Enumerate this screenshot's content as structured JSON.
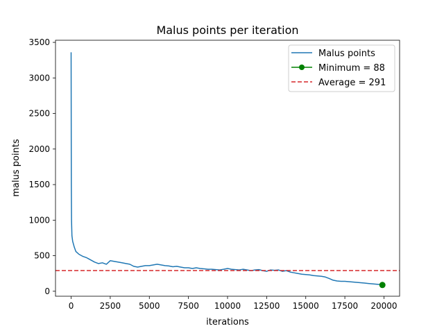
{
  "chart_data": {
    "type": "line",
    "title": "Malus points per iteration",
    "xlabel": "iterations",
    "ylabel": "malus points",
    "xlim": [
      -1000,
      21000
    ],
    "ylim": [
      -70,
      3530
    ],
    "xticks": [
      0,
      2500,
      5000,
      7500,
      10000,
      12500,
      15000,
      17500,
      20000
    ],
    "xtick_labels": [
      "0",
      "2500",
      "5000",
      "7500",
      "10000",
      "12500",
      "15000",
      "17500",
      "20000"
    ],
    "yticks": [
      0,
      500,
      1000,
      1500,
      2000,
      2500,
      3000,
      3500
    ],
    "ytick_labels": [
      "0",
      "500",
      "1000",
      "1500",
      "2000",
      "2500",
      "3000",
      "3500"
    ],
    "grid": false,
    "legend_position": "top-right",
    "series": [
      {
        "name": "Malus points",
        "kind": "line",
        "color": "#1f77b4",
        "x": [
          0,
          10,
          25,
          50,
          100,
          200,
          300,
          500,
          750,
          1000,
          1250,
          1500,
          1750,
          2000,
          2250,
          2500,
          2750,
          3000,
          3250,
          3500,
          3750,
          4000,
          4250,
          4500,
          4750,
          5000,
          5250,
          5500,
          5750,
          6000,
          6250,
          6500,
          6750,
          7000,
          7250,
          7500,
          7750,
          8000,
          8250,
          8500,
          8750,
          9000,
          9250,
          9500,
          9750,
          10000,
          10250,
          10500,
          10750,
          11000,
          11250,
          11500,
          11750,
          12000,
          12250,
          12500,
          12750,
          13000,
          13250,
          13500,
          13750,
          14000,
          14250,
          14500,
          14750,
          15000,
          15250,
          15500,
          15750,
          16000,
          16250,
          16500,
          16750,
          17000,
          17250,
          17500,
          17750,
          18000,
          18250,
          18500,
          18750,
          19000,
          19250,
          19500,
          19750,
          19900
        ],
        "y": [
          3360,
          1500,
          1000,
          780,
          700,
          620,
          560,
          520,
          490,
          470,
          440,
          410,
          390,
          400,
          380,
          430,
          420,
          410,
          400,
          390,
          380,
          350,
          340,
          350,
          360,
          360,
          370,
          380,
          370,
          360,
          355,
          345,
          350,
          340,
          330,
          330,
          320,
          330,
          320,
          315,
          310,
          310,
          305,
          300,
          310,
          320,
          310,
          305,
          300,
          310,
          300,
          290,
          300,
          305,
          290,
          280,
          300,
          295,
          300,
          280,
          290,
          270,
          260,
          250,
          240,
          235,
          230,
          220,
          215,
          210,
          200,
          180,
          155,
          145,
          140,
          140,
          135,
          130,
          125,
          120,
          115,
          110,
          105,
          100,
          95,
          88
        ]
      },
      {
        "name": "Minimum = 88",
        "kind": "point",
        "color": "#008000",
        "x": [
          19900
        ],
        "y": [
          88
        ]
      },
      {
        "name": "Average = 291",
        "kind": "hline",
        "color": "#d62728",
        "y": 291
      }
    ]
  }
}
